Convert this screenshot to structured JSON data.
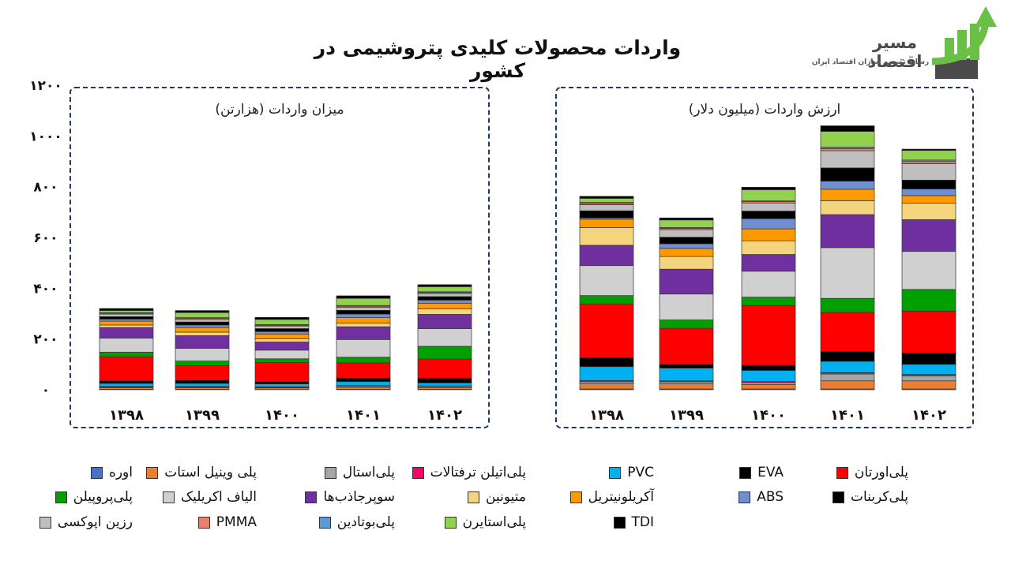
{
  "title": "واردات محصولات کلیدی پتروشیمی در کشور",
  "logo": {
    "name": "مسیر اقتصاد",
    "tagline": "رسانه تصمیم سازان اقتصاد ایران"
  },
  "colors": {
    "axis_text": "#111111",
    "panel_border": "#1f3864",
    "grid": "#d9d9d9"
  },
  "chart_data": {
    "type": "bar",
    "stacked": true,
    "y_ticks": [
      "۰",
      "۲۰۰",
      "۴۰۰",
      "۶۰۰",
      "۸۰۰",
      "۱۰۰۰",
      "۱۲۰۰"
    ],
    "ylim": [
      0,
      1200
    ],
    "grid": true,
    "legend_position": "bottom",
    "series": [
      {
        "name": "اوره",
        "color": "#4472c4"
      },
      {
        "name": "پلی وینیل استات",
        "color": "#ed7d31"
      },
      {
        "name": "پلی‌استال",
        "color": "#a5a5a5"
      },
      {
        "name": "پلی‌اتیلن ترفتالات",
        "color": "#ff0066"
      },
      {
        "name": "PVC",
        "color": "#00b0f0"
      },
      {
        "name": "EVA",
        "color": "#000000"
      },
      {
        "name": "پلی‌اورتان",
        "color": "#ff0000"
      },
      {
        "name": "پلی‌پروپیلن",
        "color": "#00a000"
      },
      {
        "name": "الیاف اکریلیک",
        "color": "#d0d0d0"
      },
      {
        "name": "سوپرجاذب‌ها",
        "color": "#7030a0"
      },
      {
        "name": "متیونین",
        "color": "#f4d47c"
      },
      {
        "name": "آکریلونیتریل",
        "color": "#ff9900"
      },
      {
        "name": "ABS",
        "color": "#6f8fd0"
      },
      {
        "name": "پلی‌کربنات",
        "color": "#000000"
      },
      {
        "name": "رزین اپوکسی",
        "color": "#bfbfbf"
      },
      {
        "name": "PMMA",
        "color": "#e9806b"
      },
      {
        "name": "پلی‌بوتادین",
        "color": "#5b9bd5"
      },
      {
        "name": "پلی‌استایرن",
        "color": "#92d050"
      },
      {
        "name": "TDI",
        "color": "#000000"
      }
    ],
    "panels": [
      {
        "title": "میزان واردات (هزارتن)",
        "categories": [
          "۱۳۹۸",
          "۱۳۹۹",
          "۱۴۰۰",
          "۱۴۰۱",
          "۱۴۰۲"
        ],
        "stacks": [
          [
            2,
            6,
            3,
            2,
            12,
            10,
            95,
            18,
            55,
            42,
            10,
            15,
            8,
            10,
            10,
            3,
            3,
            8,
            8
          ],
          [
            2,
            6,
            3,
            2,
            12,
            12,
            58,
            18,
            50,
            50,
            14,
            18,
            10,
            12,
            10,
            4,
            3,
            20,
            8
          ],
          [
            1,
            6,
            2,
            2,
            12,
            8,
            76,
            15,
            34,
            32,
            13,
            18,
            10,
            12,
            10,
            3,
            3,
            20,
            8
          ],
          [
            2,
            7,
            5,
            2,
            16,
            14,
            60,
            22,
            70,
            50,
            14,
            22,
            14,
            15,
            12,
            4,
            3,
            28,
            10
          ],
          [
            2,
            6,
            5,
            2,
            12,
            18,
            76,
            50,
            70,
            56,
            22,
            22,
            12,
            14,
            12,
            4,
            3,
            20,
            8
          ]
        ]
      },
      {
        "title": "ارزش واردات (میلیون دلار)",
        "categories": [
          "۱۳۹۸",
          "۱۳۹۹",
          "۱۴۰۰",
          "۱۴۰۱",
          "۱۴۰۲"
        ],
        "stacks": [
          [
            3,
            20,
            8,
            5,
            55,
            35,
            212,
            33,
            118,
            80,
            70,
            33,
            5,
            28,
            24,
            5,
            4,
            16,
            8
          ],
          [
            3,
            20,
            8,
            4,
            50,
            14,
            143,
            33,
            102,
            98,
            50,
            32,
            18,
            26,
            30,
            5,
            3,
            30,
            8
          ],
          [
            3,
            17,
            8,
            4,
            44,
            20,
            236,
            33,
            102,
            66,
            54,
            47,
            40,
            30,
            32,
            5,
            3,
            44,
            10
          ],
          [
            3,
            32,
            27,
            5,
            45,
            38,
            155,
            55,
            200,
            130,
            55,
            45,
            32,
            52,
            68,
            8,
            6,
            62,
            22
          ],
          [
            3,
            32,
            20,
            5,
            40,
            45,
            165,
            85,
            150,
            125,
            65,
            30,
            26,
            35,
            65,
            8,
            6,
            38,
            5
          ]
        ]
      }
    ]
  }
}
